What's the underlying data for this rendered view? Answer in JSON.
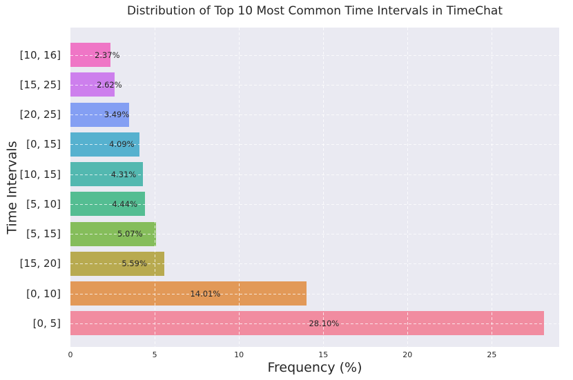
{
  "chart_data": {
    "type": "bar",
    "orientation": "horizontal",
    "title": "Distribution of Top 10 Most Common Time Intervals in TimeChat",
    "xlabel": "Frequency (%)",
    "ylabel": "Time Intervals",
    "categories": [
      "[10, 16]",
      "[15, 25]",
      "[20, 25]",
      "[0, 15]",
      "[10, 15]",
      "[5, 10]",
      "[5, 15]",
      "[15, 20]",
      "[0, 10]",
      "[0, 5]"
    ],
    "values": [
      2.37,
      2.62,
      3.49,
      4.09,
      4.31,
      4.44,
      5.07,
      5.59,
      14.01,
      28.1
    ],
    "value_labels": [
      "2.37%",
      "2.62%",
      "3.49%",
      "4.09%",
      "4.31%",
      "4.44%",
      "5.07%",
      "5.59%",
      "14.01%",
      "28.10%"
    ],
    "bar_colors": [
      "#EF70C3",
      "#CB79EC",
      "#7E9BF2",
      "#4EAECC",
      "#4BB5AC",
      "#4CBB8C",
      "#7FBA52",
      "#B5A647",
      "#E1954F",
      "#F1879B"
    ],
    "x_ticks": [
      0,
      5,
      10,
      15,
      20,
      25
    ],
    "xlim": [
      0,
      29
    ],
    "grid": true,
    "grid_style": "dashed",
    "grid_color": "#FFFFFF",
    "legend": "none",
    "plot_background": "#EAEAF2",
    "figure_background": "#FFFFFF",
    "text_color": "#262626"
  }
}
